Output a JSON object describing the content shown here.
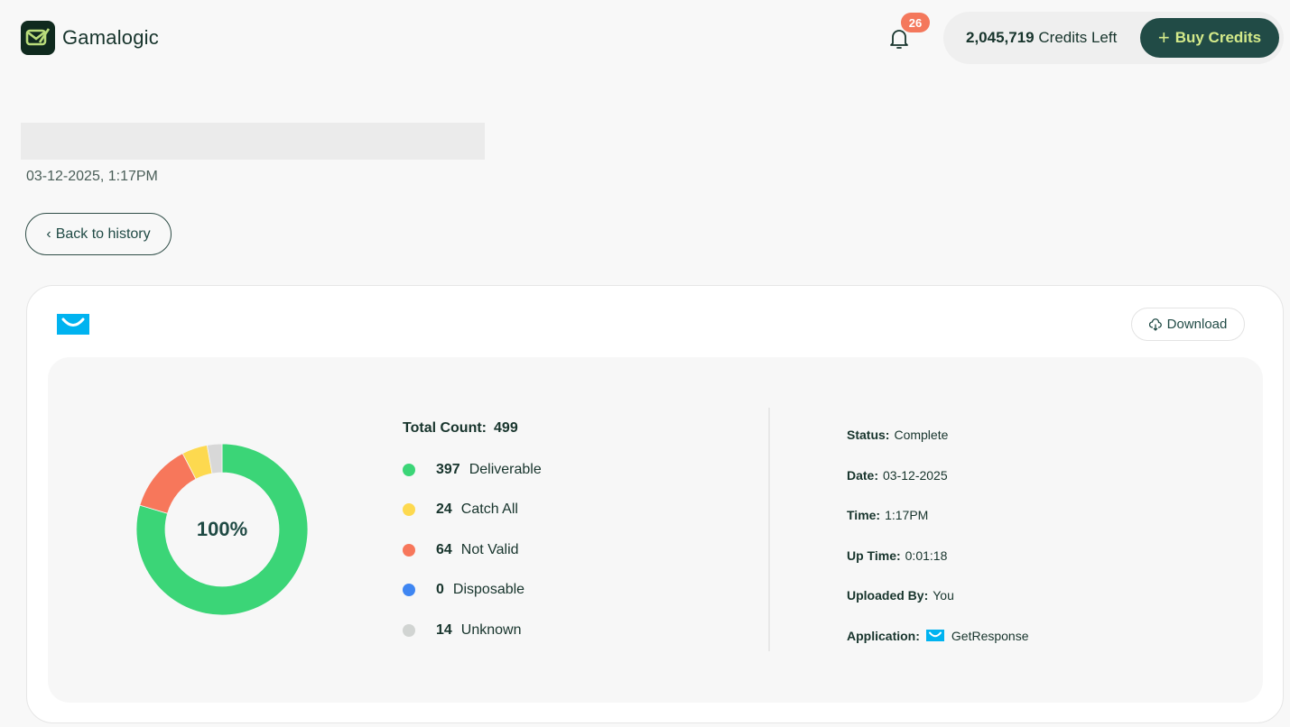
{
  "header": {
    "brand": "Gamalogic",
    "notifications_count": "26",
    "credits_amount": "2,045,719",
    "credits_suffix": "Credits Left",
    "buy_button": {
      "icon": "+",
      "label": "Buy Credits"
    }
  },
  "page": {
    "title_placeholder": "",
    "datetime": "03-12-2025, 1:17PM",
    "back_button": {
      "icon": "‹",
      "label": "Back to history"
    }
  },
  "card": {
    "app_logo": "getresponse-logo",
    "download_button": {
      "icon": "cloud-download-icon",
      "label": "Download"
    }
  },
  "chart_data": {
    "type": "pie",
    "donut": true,
    "center_label": "100%",
    "total_label": "Total Count:",
    "total": 499,
    "categories": [
      "Deliverable",
      "Catch All",
      "Not Valid",
      "Disposable",
      "Unknown"
    ],
    "values": [
      397,
      24,
      64,
      0,
      14
    ],
    "colors": [
      "#3bd577",
      "#fdd94f",
      "#f7775b",
      "#3f86f2",
      "#d8d8d8"
    ],
    "draw_order": [
      "Deliverable",
      "Not Valid",
      "Catch All",
      "Unknown"
    ],
    "legend_position": "right"
  },
  "legend": {
    "total_label": "Total Count:",
    "total_value": "499",
    "items": [
      {
        "count": "397",
        "label": "Deliverable",
        "color": "#3bd577"
      },
      {
        "count": "24",
        "label": "Catch All",
        "color": "#fdd94f"
      },
      {
        "count": "64",
        "label": "Not Valid",
        "color": "#f7775b"
      },
      {
        "count": "0",
        "label": "Disposable",
        "color": "#3f86f2"
      },
      {
        "count": "14",
        "label": "Unknown",
        "color": "#d1d4d2"
      }
    ]
  },
  "details": {
    "status": {
      "label": "Status:",
      "value": "Complete"
    },
    "date": {
      "label": "Date:",
      "value": "03-12-2025"
    },
    "time": {
      "label": "Time:",
      "value": "1:17PM"
    },
    "uptime": {
      "label": "Up Time:",
      "value": "0:01:18"
    },
    "uploaded_by": {
      "label": "Uploaded By:",
      "value": "You"
    },
    "application": {
      "label": "Application:",
      "value": "GetResponse",
      "icon": "getresponse-icon"
    }
  },
  "colors": {
    "brand_dark": "#214b46",
    "brand_accent": "#d4ea8a",
    "badge": "#f4785c",
    "getresponse_blue": "#00baff"
  }
}
